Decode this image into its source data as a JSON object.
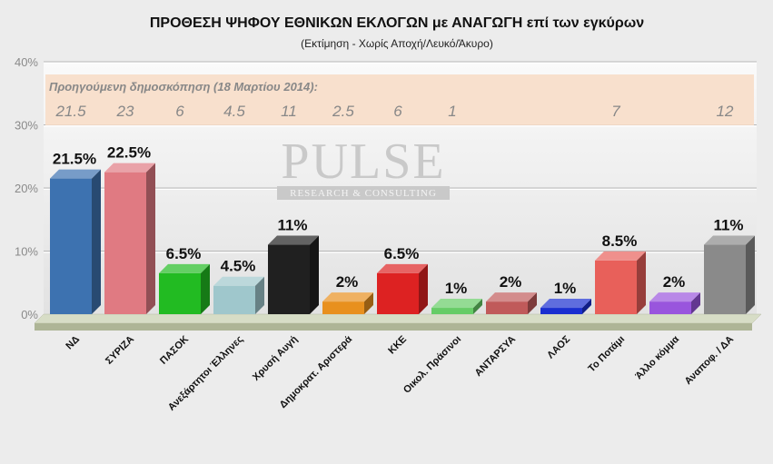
{
  "chart_data": {
    "type": "bar",
    "title": "ΠΡΟΘΕΣΗ ΨΗΦΟΥ ΕΘΝΙΚΩΝ ΕΚΛΟΓΩΝ με ΑΝΑΓΩΓΗ επί των εγκύρων",
    "subtitle": "(Εκτίμηση  -  Χωρίς Αποχή/Λευκό/Άκυρο)",
    "ylim": [
      0,
      40
    ],
    "yticks": [
      "0%",
      "10%",
      "20%",
      "30%",
      "40%"
    ],
    "grid": true,
    "categories": [
      "ΝΔ",
      "ΣΥΡΙΖΑ",
      "ΠΑΣΟΚ",
      "Ανεξάρτητοι Έλληνες",
      "Χρυσή Αυγή",
      "Δημοκρατ. Αριστερά",
      "ΚΚΕ",
      "Οικολ. Πράσινοι",
      "ΑΝΤΑΡΣΥΑ",
      "ΛΑΟΣ",
      "Το Ποτάμι",
      "Άλλο κόμμα",
      "Αναποφ. / ΔΑ"
    ],
    "values": [
      21.5,
      22.5,
      6.5,
      4.5,
      11,
      2,
      6.5,
      1,
      2,
      1,
      8.5,
      2,
      11
    ],
    "value_labels": [
      "21.5%",
      "22.5%",
      "6.5%",
      "4.5%",
      "11%",
      "2%",
      "6.5%",
      "1%",
      "2%",
      "1%",
      "8.5%",
      "2%",
      "11%"
    ],
    "colors": [
      "#3d72b0",
      "#e07a82",
      "#22bb22",
      "#9fc7cc",
      "#202020",
      "#e8901e",
      "#dd2222",
      "#66cc66",
      "#c05a5a",
      "#1a2fd0",
      "#e8605a",
      "#9955dd",
      "#8a8a8a"
    ],
    "previous_poll": {
      "title": "Προηγούμενη δημοσκόπηση (18 Μαρτίου 2014):",
      "values": [
        "21.5",
        "23",
        "6",
        "4.5",
        "11",
        "2.5",
        "6",
        "1",
        "",
        "",
        "7",
        "",
        "12"
      ]
    },
    "watermark": {
      "brand": "PULSE",
      "tagline": "RESEARCH & CONSULTING"
    }
  }
}
